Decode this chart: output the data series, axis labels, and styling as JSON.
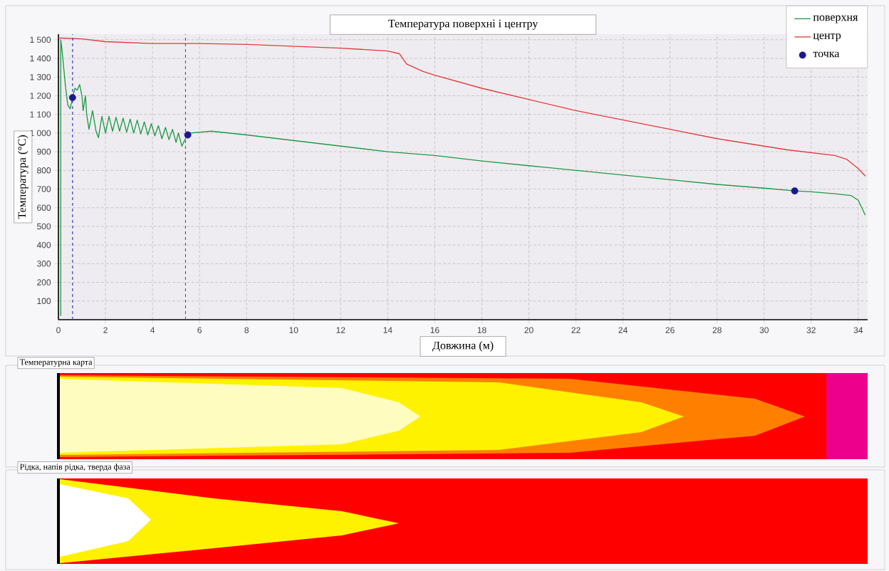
{
  "chart_data": [
    {
      "type": "line",
      "title": "Температура поверхні і центру",
      "xlabel": "Довжина (м)",
      "ylabel": "Температура (°C)",
      "xlim": [
        0,
        34.4
      ],
      "ylim": [
        0,
        1530
      ],
      "xticks": [
        0,
        2,
        4,
        6,
        8,
        10,
        12,
        14,
        16,
        18,
        20,
        22,
        24,
        26,
        28,
        30,
        32,
        34
      ],
      "yticks": [
        100,
        200,
        300,
        400,
        500,
        600,
        700,
        800,
        900,
        {
          "value": 1000,
          "label": "1 000"
        },
        {
          "value": 1100,
          "label": "1 100"
        },
        {
          "value": 1200,
          "label": "1 200"
        },
        {
          "value": 1300,
          "label": "1 300"
        },
        {
          "value": 1400,
          "label": "1 400"
        },
        {
          "value": 1500,
          "label": "1 500"
        }
      ],
      "grid": true,
      "legend": "top right",
      "series": [
        {
          "name": "поверхня",
          "type": "line",
          "color": "#1f9a45",
          "x": [
            0.1,
            0.1,
            0.15,
            0.3,
            0.4,
            0.5,
            0.6,
            0.7,
            0.8,
            0.9,
            1.0,
            1.05,
            1.15,
            1.2,
            1.3,
            1.45,
            1.6,
            1.7,
            1.85,
            2.0,
            2.15,
            2.3,
            2.45,
            2.6,
            2.75,
            2.9,
            3.05,
            3.2,
            3.35,
            3.5,
            3.65,
            3.8,
            3.95,
            4.1,
            4.25,
            4.4,
            4.55,
            4.7,
            4.85,
            5.0,
            5.1,
            5.25,
            5.4,
            5.5,
            5.6,
            6.5,
            8,
            10,
            12,
            14,
            16,
            18,
            20,
            22,
            24,
            26,
            28,
            30,
            31.3,
            32,
            33,
            33.7,
            34,
            34.3
          ],
          "values": [
            20,
            1500,
            1450,
            1250,
            1150,
            1130,
            1190,
            1240,
            1230,
            1260,
            1200,
            1120,
            1200,
            1100,
            1020,
            1120,
            1010,
            975,
            1090,
            1000,
            1090,
            1010,
            1085,
            1010,
            1080,
            1005,
            1075,
            1000,
            1070,
            995,
            1060,
            990,
            1050,
            985,
            1040,
            970,
            1030,
            965,
            1020,
            950,
            1000,
            930,
            970,
            990,
            1000,
            1010,
            990,
            960,
            930,
            900,
            880,
            850,
            825,
            800,
            775,
            750,
            725,
            705,
            690,
            685,
            675,
            665,
            640,
            560
          ]
        },
        {
          "name": "центр",
          "type": "line",
          "color": "#e23b3b",
          "x": [
            0,
            1,
            2,
            4,
            6,
            8,
            10,
            12,
            14,
            14.5,
            14.8,
            15.5,
            16,
            18,
            20,
            22,
            24,
            26,
            28,
            30,
            31,
            32,
            33,
            33.5,
            34,
            34.3
          ],
          "values": [
            1510,
            1505,
            1490,
            1480,
            1480,
            1475,
            1465,
            1455,
            1440,
            1425,
            1370,
            1330,
            1310,
            1240,
            1180,
            1120,
            1070,
            1020,
            970,
            930,
            910,
            895,
            880,
            860,
            810,
            770
          ]
        },
        {
          "name": "точка",
          "type": "scatter",
          "marker": "circle",
          "color": "#1a1a8c",
          "x": [
            0.6,
            5.5,
            31.3
          ],
          "values": [
            1190,
            990,
            690
          ]
        }
      ],
      "ref_lines": [
        {
          "axis": "x",
          "value": 0.6,
          "color": "#3a4fc0",
          "line_style": "dashed"
        },
        {
          "axis": "x",
          "value": 5.4,
          "color": "#3a4fc0",
          "line_style": "dashed"
        }
      ]
    },
    {
      "type": "other",
      "title": "Температурна карта"
    },
    {
      "type": "other",
      "title": "Рідка, напів рідка, тверда фаза"
    }
  ]
}
